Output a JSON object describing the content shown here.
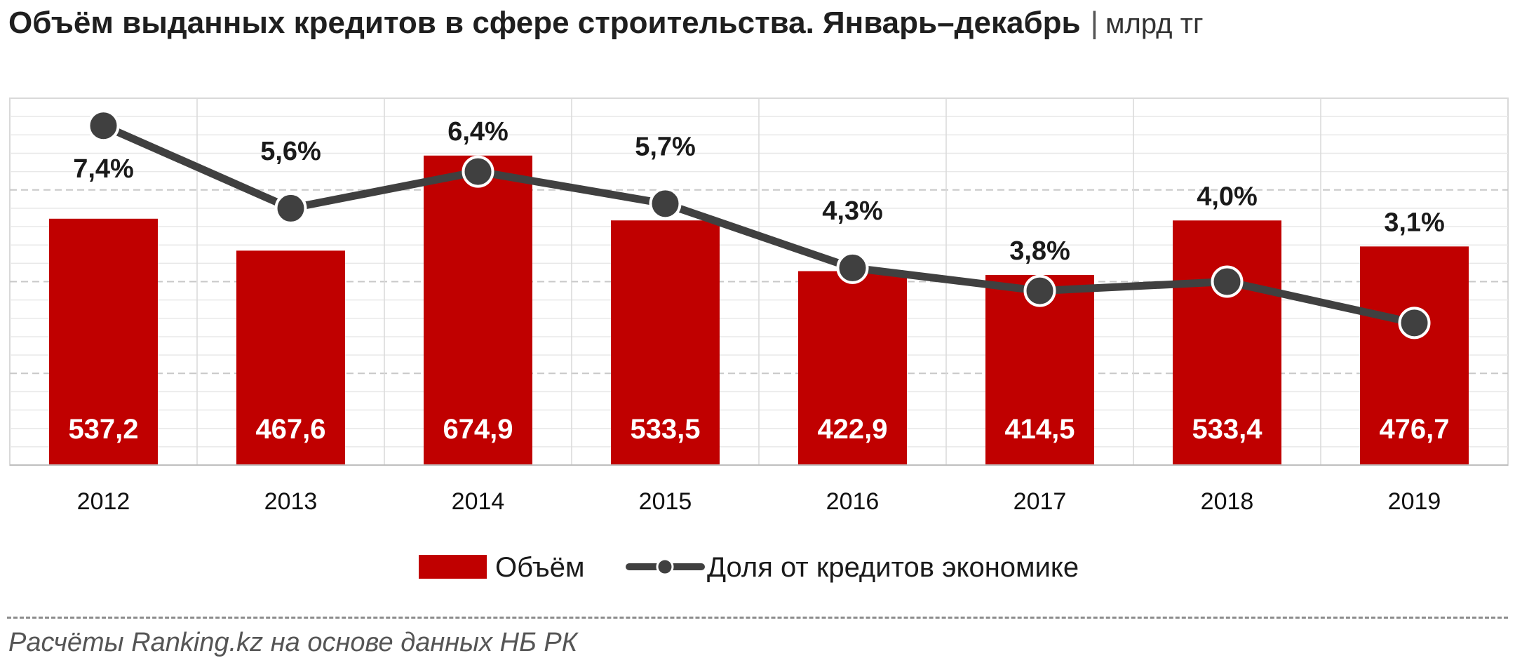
{
  "title": {
    "main": "Объём выданных кредитов в сфере строительства. Январь–декабрь",
    "separator": "|",
    "unit": "млрд тг"
  },
  "source": "Расчёты Ranking.kz на основе данных НБ РК",
  "colors": {
    "bar": "#c00000",
    "line": "#404040",
    "marker_fill": "#404040",
    "marker_stroke": "#ffffff",
    "grid": "#d9d9d9"
  },
  "chart_data": {
    "type": "bar",
    "categories": [
      "2012",
      "2013",
      "2014",
      "2015",
      "2016",
      "2017",
      "2018",
      "2019"
    ],
    "series": [
      {
        "name": "Объём",
        "type": "bar",
        "values": [
          537.2,
          467.6,
          674.9,
          533.5,
          422.9,
          414.5,
          533.4,
          476.7
        ],
        "labels": [
          "537,2",
          "467,6",
          "674,9",
          "533,5",
          "422,9",
          "414,5",
          "533,4",
          "476,7"
        ]
      },
      {
        "name": "Доля от кредитов экономике",
        "type": "line",
        "axis": "secondary",
        "values": [
          7.4,
          5.6,
          6.4,
          5.7,
          4.3,
          3.8,
          4.0,
          3.1
        ],
        "labels": [
          "7,4%",
          "5,6%",
          "6,4%",
          "5,7%",
          "4,3%",
          "3,8%",
          "4,0%",
          "3,1%"
        ]
      }
    ],
    "ylim": [
      0,
      800
    ],
    "y2lim": [
      0,
      8.0
    ],
    "grid": true,
    "legend": "bottom"
  }
}
